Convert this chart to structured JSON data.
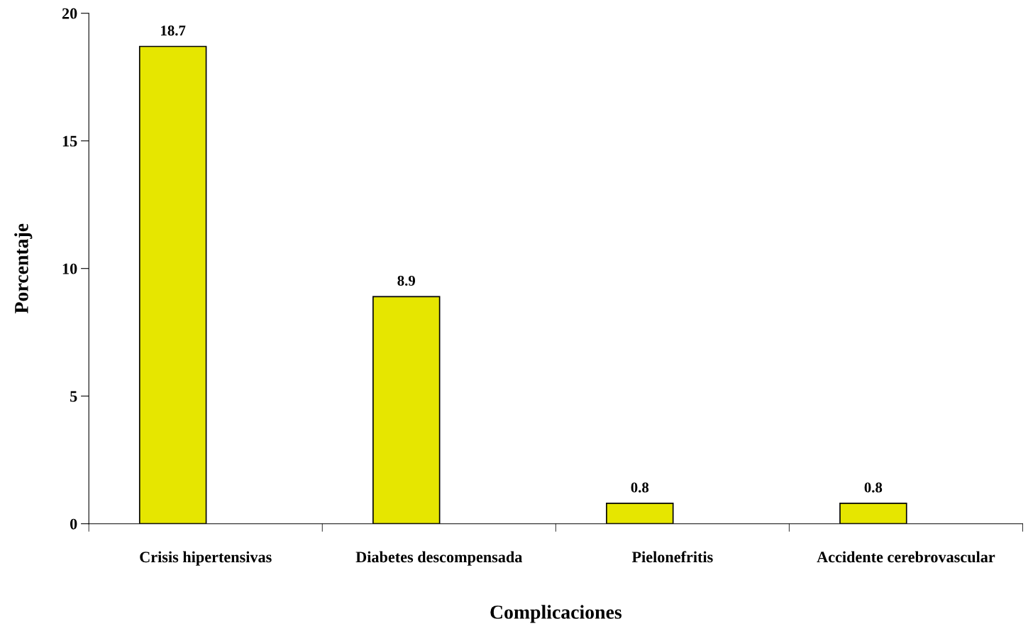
{
  "chart_data": {
    "type": "bar",
    "xlabel": "Complicaciones",
    "ylabel": "Porcentaje",
    "categories": [
      "Crisis hipertensivas",
      "Diabetes descompensada",
      "Pielonefritis",
      "Accidente cerebrovascular"
    ],
    "values": [
      18.7,
      8.9,
      0.8,
      0.8
    ],
    "color": "#e6e600",
    "ylim": [
      0,
      20
    ],
    "yticks": [
      0,
      5,
      10,
      15,
      20
    ],
    "data_labels": true
  }
}
